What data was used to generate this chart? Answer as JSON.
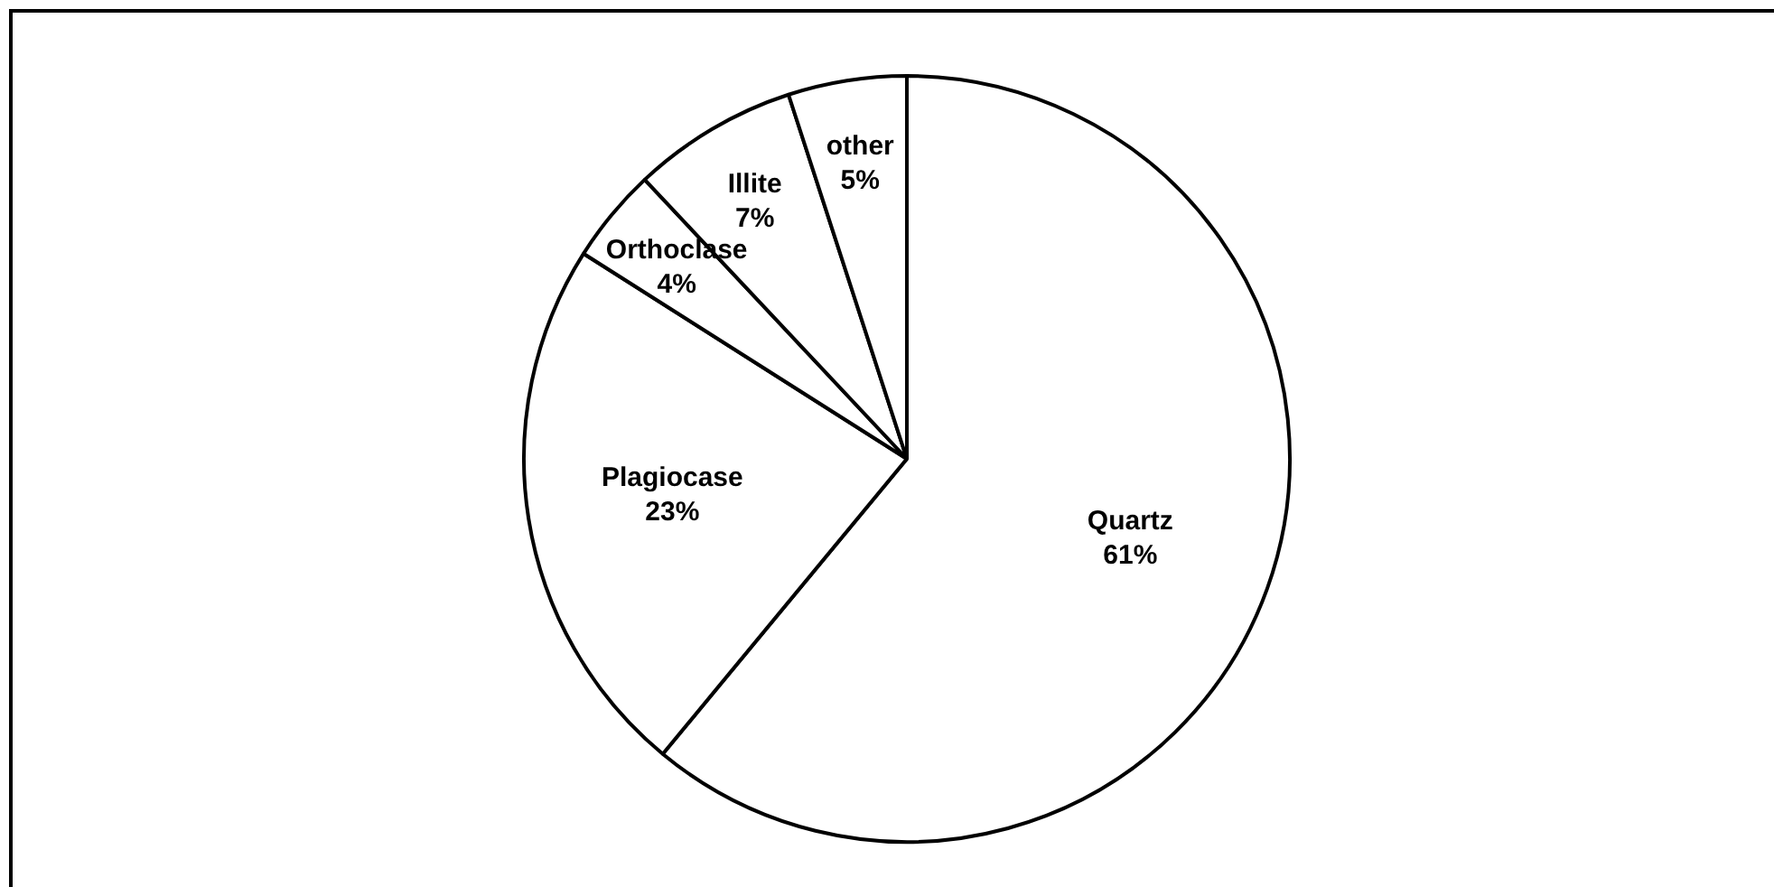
{
  "chart_data": {
    "type": "pie",
    "categories": [
      "Quartz",
      "Plagiocase",
      "Orthoclase",
      "Illite",
      "other"
    ],
    "values": [
      61,
      23,
      4,
      7,
      5
    ],
    "colors": [
      "#ffffff",
      "#ffffff",
      "#ffffff",
      "#ffffff",
      "#ffffff"
    ],
    "value_labels": [
      "61%",
      "23%",
      "4%",
      "7%",
      "5%"
    ],
    "legend": false
  }
}
